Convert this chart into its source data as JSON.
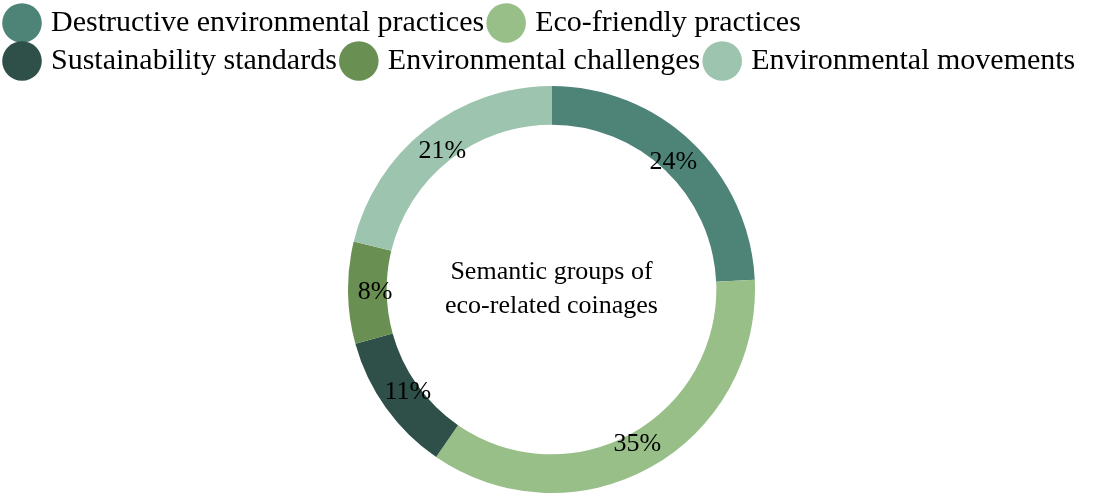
{
  "chart_data": {
    "type": "donut",
    "title": "Semantic groups of eco-related coinages",
    "categories": [
      "Destructive environmental practices",
      "Eco-friendly practices",
      "Sustainability standards",
      "Environmental challenges",
      "Environmental movements"
    ],
    "values": [
      24,
      35,
      11,
      8,
      21
    ],
    "colors": [
      "#4e8378",
      "#98bf88",
      "#2e5048",
      "#6a8f52",
      "#9dc4ae"
    ],
    "value_labels": [
      "24%",
      "35%",
      "11%",
      "8%",
      "21%"
    ],
    "legend": "top left"
  }
}
